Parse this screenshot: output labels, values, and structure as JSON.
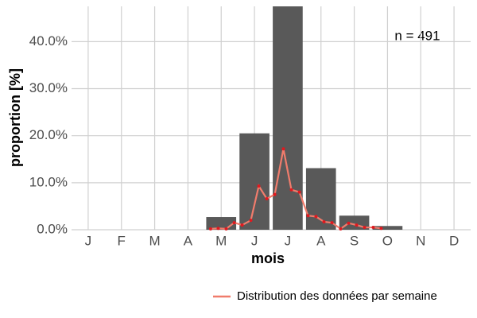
{
  "chart_data": {
    "type": "bar",
    "x_label": "mois",
    "y_label": "proportion [%]",
    "annotation": "n = 491",
    "categories": [
      "J",
      "F",
      "M",
      "A",
      "M",
      "J",
      "J",
      "A",
      "S",
      "O",
      "N",
      "D"
    ],
    "values": [
      0,
      0,
      0,
      0,
      2.7,
      20.5,
      47.5,
      13.1,
      3.0,
      0.8,
      0,
      0
    ],
    "color": "#595959",
    "ylim": [
      0,
      47.5
    ],
    "yticks": [
      {
        "value": 0,
        "label": "0.0%"
      },
      {
        "value": 10,
        "label": "10.0%"
      },
      {
        "value": 20,
        "label": "20.0%"
      },
      {
        "value": 30,
        "label": "30.0%"
      },
      {
        "value": 40,
        "label": "40.0%"
      }
    ],
    "xlim": [
      0.5,
      12.5
    ],
    "grid": true,
    "line": {
      "name": "Distribution des données par semaine",
      "color": "#f07c6c",
      "point_color": "#e0191f",
      "x": [
        4.68,
        4.91,
        5.15,
        5.39,
        5.63,
        5.89,
        6.13,
        6.37,
        6.61,
        6.87,
        7.11,
        7.35,
        7.61,
        7.85,
        8.09,
        8.33,
        8.59,
        8.83,
        9.07,
        9.31,
        9.57,
        9.81
      ],
      "values": [
        0.2,
        0.3,
        0.2,
        1.5,
        1.0,
        2.0,
        9.3,
        6.6,
        7.5,
        17.2,
        8.5,
        8.0,
        3.0,
        2.8,
        1.7,
        1.5,
        0.2,
        1.4,
        1.0,
        0.5,
        0.5,
        0.3
      ]
    },
    "legend_position": "bottom"
  }
}
